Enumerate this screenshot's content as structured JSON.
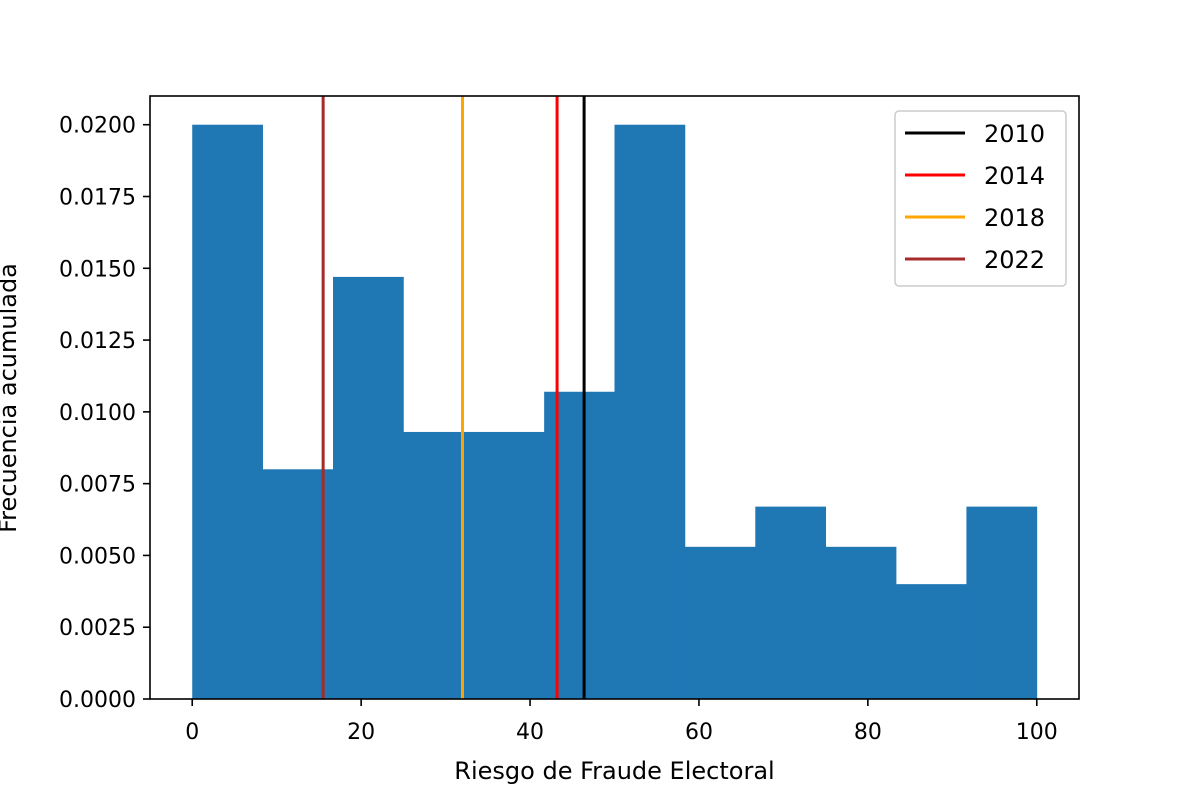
{
  "chart_data": {
    "type": "bar",
    "subtype": "histogram",
    "title": "",
    "xlabel": "Riesgo de Fraude Electoral",
    "ylabel": "Frecuencia acumulada",
    "xlim": [
      -5,
      105
    ],
    "ylim": [
      0,
      0.021
    ],
    "x_ticks": [
      0,
      20,
      40,
      60,
      80,
      100
    ],
    "x_tick_labels": [
      "0",
      "20",
      "40",
      "60",
      "80",
      "100"
    ],
    "y_ticks": [
      0,
      0.0025,
      0.005,
      0.0075,
      0.01,
      0.0125,
      0.015,
      0.0175,
      0.02
    ],
    "y_tick_labels": [
      "0.0000",
      "0.0025",
      "0.0050",
      "0.0075",
      "0.0100",
      "0.0125",
      "0.0150",
      "0.0175",
      "0.0200"
    ],
    "bin_edges": [
      0,
      8.33,
      16.67,
      25,
      33.33,
      41.67,
      50,
      58.33,
      66.67,
      75,
      83.33,
      91.67,
      100
    ],
    "values": [
      0.02,
      0.008,
      0.0147,
      0.0093,
      0.0093,
      0.0107,
      0.02,
      0.0053,
      0.0067,
      0.0053,
      0.004,
      0.0067
    ],
    "bar_color": "#1f77b4",
    "grid": false,
    "legend_position": "top-right",
    "vlines": [
      {
        "name": "2010",
        "x": 46.4,
        "color": "#000000"
      },
      {
        "name": "2014",
        "x": 43.2,
        "color": "#ff0000"
      },
      {
        "name": "2018",
        "x": 32.0,
        "color": "#ffa500"
      },
      {
        "name": "2022",
        "x": 15.5,
        "color": "#a52a2a"
      }
    ]
  }
}
